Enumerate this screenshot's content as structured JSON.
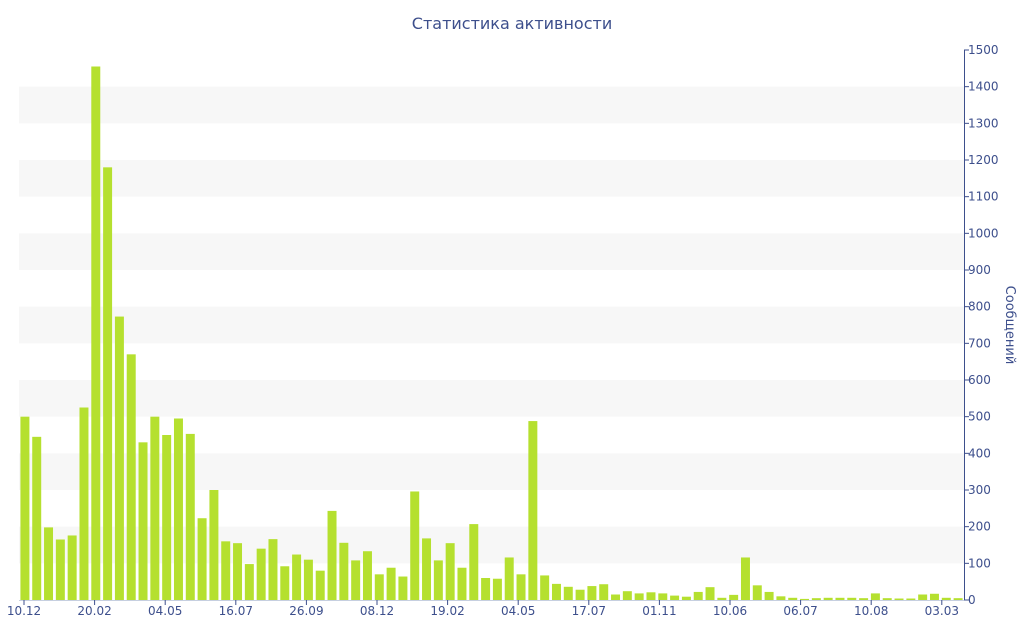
{
  "chart_data": {
    "type": "bar",
    "title": "Статистика активности",
    "ylabel": "Сообщений",
    "xlabel": "",
    "ylim": [
      0,
      1500
    ],
    "y_ticks": [
      0,
      100,
      200,
      300,
      400,
      500,
      600,
      700,
      800,
      900,
      1000,
      1100,
      1200,
      1300,
      1400,
      1500
    ],
    "x_ticks": [
      "10.12",
      "20.02",
      "04.05",
      "16.07",
      "26.09",
      "08.12",
      "19.02",
      "04.05",
      "17.07",
      "01.11",
      "10.06",
      "06.07",
      "10.08",
      "03.03"
    ],
    "y_axis_position": "right",
    "grid": "alternating horizontal bands",
    "bar_color": "#b5e02f",
    "axis_color": "#3d4f8c",
    "values": [
      500,
      445,
      198,
      165,
      176,
      525,
      1455,
      1180,
      773,
      670,
      430,
      500,
      450,
      495,
      453,
      223,
      300,
      160,
      155,
      98,
      140,
      166,
      92,
      124,
      110,
      80,
      243,
      156,
      108,
      133,
      70,
      88,
      64,
      296,
      168,
      108,
      155,
      88,
      207,
      60,
      58,
      116,
      70,
      488,
      67,
      44,
      36,
      28,
      38,
      43,
      15,
      24,
      18,
      21,
      18,
      12,
      9,
      22,
      35,
      6,
      14,
      116,
      40,
      22,
      10,
      6,
      3,
      5,
      6,
      6,
      6,
      5,
      18,
      5,
      4,
      4,
      15,
      17,
      6,
      5
    ]
  }
}
